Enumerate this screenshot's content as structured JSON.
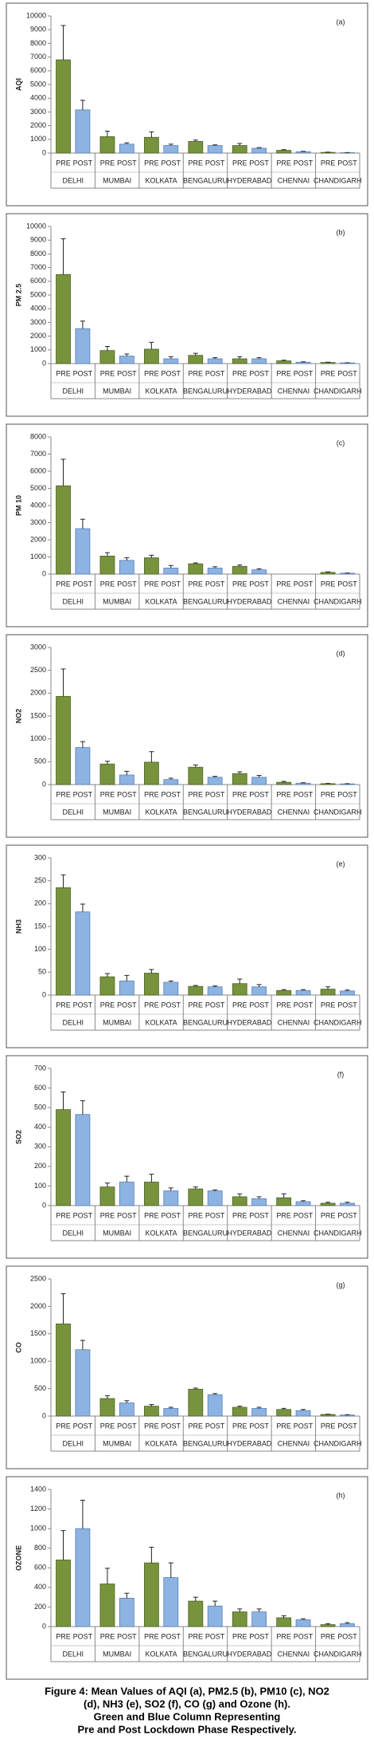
{
  "chart_data": [
    {
      "type": "bar",
      "panel_label": "(a)",
      "ylabel": "AQI",
      "categories": [
        "DELHI",
        "MUMBAI",
        "KOLKATA",
        "BENGALURU",
        "HYDERABAD",
        "CHENNAI",
        "CHANDIGARH"
      ],
      "series": [
        {
          "name": "PRE",
          "color": "#77933c",
          "values": [
            6800,
            1200,
            1150,
            850,
            550,
            200,
            50
          ],
          "errors": [
            2500,
            400,
            400,
            100,
            150,
            50,
            20
          ]
        },
        {
          "name": "POST",
          "color": "#8db3e2",
          "values": [
            3150,
            650,
            550,
            550,
            350,
            100,
            30
          ],
          "errors": [
            700,
            100,
            100,
            50,
            50,
            30,
            10
          ]
        }
      ],
      "ylim": [
        0,
        10000
      ],
      "yticks": [
        0,
        1000,
        2000,
        3000,
        4000,
        5000,
        6000,
        7000,
        8000,
        9000,
        10000
      ]
    },
    {
      "type": "bar",
      "panel_label": "(b)",
      "ylabel": "PM 2.5",
      "categories": [
        "DELHI",
        "MUMBAI",
        "KOLKATA",
        "BENGALURU",
        "HYDERABAD",
        "CHENNAI",
        "CHANDIGARH"
      ],
      "series": [
        {
          "name": "PRE",
          "color": "#77933c",
          "values": [
            6500,
            950,
            1050,
            600,
            350,
            200,
            80
          ],
          "errors": [
            2600,
            300,
            500,
            150,
            150,
            50,
            20
          ]
        },
        {
          "name": "POST",
          "color": "#8db3e2",
          "values": [
            2550,
            550,
            350,
            350,
            350,
            100,
            50
          ],
          "errors": [
            550,
            150,
            150,
            80,
            80,
            30,
            10
          ]
        }
      ],
      "ylim": [
        0,
        10000
      ],
      "yticks": [
        0,
        1000,
        2000,
        3000,
        4000,
        5000,
        6000,
        7000,
        8000,
        9000,
        10000
      ]
    },
    {
      "type": "bar",
      "panel_label": "(c)",
      "ylabel": "PM 10",
      "categories": [
        "DELHI",
        "MUMBAI",
        "KOLKATA",
        "BENGALURU",
        "HYDERABAD",
        "CHENNAI",
        "CHANDIGARH"
      ],
      "series": [
        {
          "name": "PRE",
          "color": "#77933c",
          "values": [
            5150,
            1050,
            950,
            600,
            450,
            null,
            100
          ],
          "errors": [
            1550,
            200,
            150,
            50,
            80,
            null,
            30
          ]
        },
        {
          "name": "POST",
          "color": "#8db3e2",
          "values": [
            2650,
            800,
            350,
            350,
            250,
            null,
            50
          ],
          "errors": [
            550,
            150,
            150,
            80,
            60,
            null,
            10
          ]
        }
      ],
      "ylim": [
        0,
        8000
      ],
      "yticks": [
        0,
        1000,
        2000,
        3000,
        4000,
        5000,
        6000,
        7000,
        8000
      ]
    },
    {
      "type": "bar",
      "panel_label": "(d)",
      "ylabel": "NO2",
      "categories": [
        "DELHI",
        "MUMBAI",
        "KOLKATA",
        "BENGALURU",
        "HYDERABAD",
        "CHENNAI",
        "CHANDIGARH"
      ],
      "series": [
        {
          "name": "PRE",
          "color": "#77933c",
          "values": [
            1930,
            450,
            490,
            380,
            240,
            50,
            20
          ],
          "errors": [
            600,
            60,
            230,
            50,
            40,
            20,
            5
          ]
        },
        {
          "name": "POST",
          "color": "#8db3e2",
          "values": [
            810,
            210,
            110,
            160,
            160,
            30,
            15
          ],
          "errors": [
            130,
            80,
            30,
            20,
            40,
            10,
            5
          ]
        }
      ],
      "ylim": [
        0,
        3000
      ],
      "yticks": [
        0,
        500,
        1000,
        1500,
        2000,
        2500,
        3000
      ]
    },
    {
      "type": "bar",
      "panel_label": "(e)",
      "ylabel": "NH3",
      "categories": [
        "DELHI",
        "MUMBAI",
        "KOLKATA",
        "BENGALURU",
        "HYDERABAD",
        "CHENNAI",
        "CHANDIGARH"
      ],
      "series": [
        {
          "name": "PRE",
          "color": "#77933c",
          "values": [
            235,
            40,
            48,
            19,
            25,
            10,
            13
          ],
          "errors": [
            28,
            7,
            8,
            2,
            10,
            2,
            5
          ]
        },
        {
          "name": "POST",
          "color": "#8db3e2",
          "values": [
            182,
            31,
            28,
            18,
            18,
            10,
            9
          ],
          "errors": [
            17,
            12,
            3,
            2,
            5,
            2,
            2
          ]
        }
      ],
      "ylim": [
        0,
        300
      ],
      "yticks": [
        0,
        50,
        100,
        150,
        200,
        250,
        300
      ]
    },
    {
      "type": "bar",
      "panel_label": "(f)",
      "ylabel": "SO2",
      "categories": [
        "DELHI",
        "MUMBAI",
        "KOLKATA",
        "BENGALURU",
        "HYDERABAD",
        "CHENNAI",
        "CHANDIGARH"
      ],
      "series": [
        {
          "name": "PRE",
          "color": "#77933c",
          "values": [
            490,
            95,
            120,
            85,
            45,
            40,
            12
          ],
          "errors": [
            90,
            20,
            40,
            10,
            15,
            20,
            5
          ]
        },
        {
          "name": "POST",
          "color": "#8db3e2",
          "values": [
            465,
            120,
            75,
            75,
            35,
            20,
            12
          ],
          "errors": [
            70,
            30,
            15,
            5,
            10,
            5,
            5
          ]
        }
      ],
      "ylim": [
        0,
        700
      ],
      "yticks": [
        0,
        100,
        200,
        300,
        400,
        500,
        600,
        700
      ]
    },
    {
      "type": "bar",
      "panel_label": "(g)",
      "ylabel": "CO",
      "categories": [
        "DELHI",
        "MUMBAI",
        "KOLKATA",
        "BENGALURU",
        "HYDERABAD",
        "CHENNAI",
        "CHANDIGARH"
      ],
      "series": [
        {
          "name": "PRE",
          "color": "#77933c",
          "values": [
            1680,
            320,
            180,
            490,
            160,
            120,
            30
          ],
          "errors": [
            550,
            50,
            30,
            20,
            20,
            20,
            5
          ]
        },
        {
          "name": "POST",
          "color": "#8db3e2",
          "values": [
            1210,
            240,
            140,
            390,
            140,
            100,
            20
          ],
          "errors": [
            170,
            40,
            20,
            20,
            20,
            20,
            5
          ]
        }
      ],
      "ylim": [
        0,
        2500
      ],
      "yticks": [
        0,
        500,
        1000,
        1500,
        2000,
        2500
      ]
    },
    {
      "type": "bar",
      "panel_label": "(h)",
      "ylabel": "OZONE",
      "categories": [
        "DELHI",
        "MUMBAI",
        "KOLKATA",
        "BENGALURU",
        "HYDERABAD",
        "CHENNAI",
        "CHANDIGARH"
      ],
      "series": [
        {
          "name": "PRE",
          "color": "#77933c",
          "values": [
            680,
            435,
            650,
            260,
            150,
            90,
            20
          ],
          "errors": [
            300,
            160,
            160,
            40,
            30,
            20,
            10
          ]
        },
        {
          "name": "POST",
          "color": "#8db3e2",
          "values": [
            1000,
            290,
            500,
            210,
            150,
            70,
            30
          ],
          "errors": [
            290,
            50,
            150,
            50,
            30,
            10,
            10
          ]
        }
      ],
      "ylim": [
        0,
        1400
      ],
      "yticks": [
        0,
        200,
        400,
        600,
        800,
        1000,
        1200,
        1400
      ]
    }
  ],
  "caption": [
    "Figure 4: Mean Values of AQI (a), PM2.5 (b), PM10 (c), NO2",
    "(d), NH3 (e), SO2 (f), CO (g) and Ozone (h).",
    "Green and Blue Column Representing",
    "Pre and Post Lockdown Phase Respectively."
  ]
}
